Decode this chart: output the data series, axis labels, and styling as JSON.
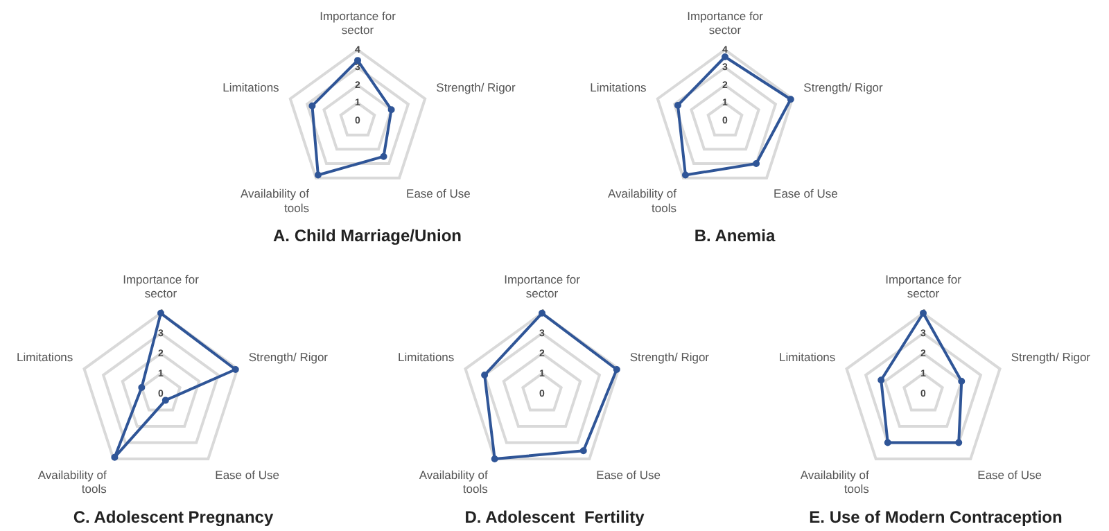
{
  "chart_data": [
    {
      "type": "radar",
      "title": "A. Child Marriage/Union",
      "categories": [
        "Importance for sector",
        "Strength/ Rigor",
        "Ease of Use",
        "Availability of tools",
        "Limitations"
      ],
      "series": [
        {
          "color": "#2f5597",
          "values": [
            3.4,
            2,
            2.5,
            3.8,
            2.7
          ]
        }
      ],
      "ylim": [
        0,
        4
      ],
      "yticks": [
        0,
        1,
        2,
        3,
        4
      ],
      "marker": "circle",
      "grid": true
    },
    {
      "type": "radar",
      "title": "B. Anemia",
      "categories": [
        "Importance for sector",
        "Strength/ Rigor",
        "Ease of Use",
        "Availability of tools",
        "Limitations"
      ],
      "series": [
        {
          "color": "#2f5597",
          "values": [
            3.6,
            3.9,
            3,
            3.8,
            2.8
          ]
        }
      ],
      "ylim": [
        0,
        4
      ],
      "yticks": [
        0,
        1,
        2,
        3,
        4
      ],
      "marker": "circle",
      "grid": true
    },
    {
      "type": "radar",
      "title": "C. Adolescent Pregnancy",
      "categories": [
        "Importance for sector",
        "Strength/ Rigor",
        "Ease of Use",
        "Availability of tools",
        "Limitations"
      ],
      "series": [
        {
          "color": "#2f5597",
          "values": [
            4,
            3.9,
            0.4,
            3.9,
            1
          ]
        }
      ],
      "ylim": [
        0,
        4
      ],
      "yticks": [
        0,
        1,
        2,
        3,
        4
      ],
      "marker": "circle",
      "grid": true
    },
    {
      "type": "radar",
      "title": "D. Adolescent  Fertility",
      "categories": [
        "Importance for sector",
        "Strength/ Rigor",
        "Ease of Use",
        "Availability of tools",
        "Limitations"
      ],
      "series": [
        {
          "color": "#2f5597",
          "values": [
            4,
            3.9,
            3.5,
            4,
            3
          ]
        }
      ],
      "ylim": [
        0,
        4
      ],
      "yticks": [
        0,
        1,
        2,
        3,
        4
      ],
      "marker": "circle",
      "grid": true
    },
    {
      "type": "radar",
      "title": "E. Use of Modern Contraception",
      "categories": [
        "Importance for sector",
        "Strength/ Rigor",
        "Ease of Use",
        "Availability of tools",
        "Limitations"
      ],
      "series": [
        {
          "color": "#2f5597",
          "values": [
            4,
            2,
            3,
            3,
            2.2
          ]
        }
      ],
      "ylim": [
        0,
        4
      ],
      "yticks": [
        0,
        1,
        2,
        3,
        4
      ],
      "marker": "circle",
      "grid": true
    }
  ]
}
